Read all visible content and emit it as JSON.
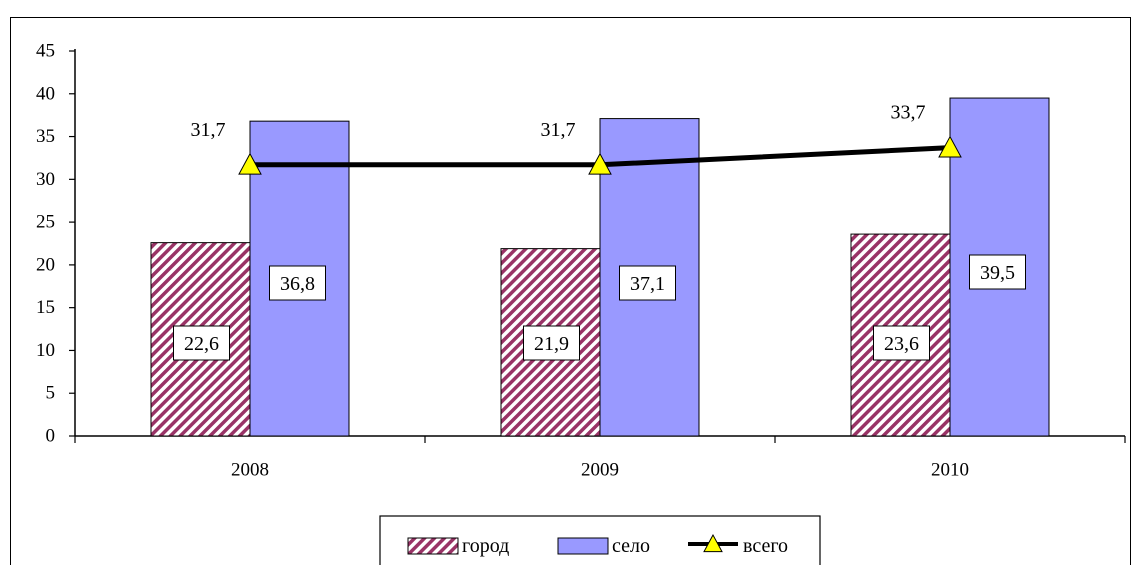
{
  "chart_data": {
    "type": "bar",
    "categories": [
      "2008",
      "2009",
      "2010"
    ],
    "series": [
      {
        "name": "город",
        "kind": "bar",
        "pattern": "diagonal-hatch",
        "color": "#993366",
        "values": [
          22.6,
          21.9,
          23.6
        ],
        "labels": [
          "22,6",
          "21,9",
          "23,6"
        ]
      },
      {
        "name": "село",
        "kind": "bar",
        "color": "#9999ff",
        "values": [
          36.8,
          37.1,
          39.5
        ],
        "labels": [
          "36,8",
          "37,1",
          "39,5"
        ]
      },
      {
        "name": "всего",
        "kind": "line",
        "marker": "triangle",
        "marker_color": "#ffff00",
        "line_color": "#000000",
        "values": [
          31.7,
          31.7,
          33.7
        ],
        "labels": [
          "31,7",
          "31,7",
          "33,7"
        ]
      }
    ],
    "y_ticks": [
      "0",
      "5",
      "10",
      "15",
      "20",
      "25",
      "30",
      "35",
      "40",
      "45"
    ],
    "ylim": [
      0,
      45
    ],
    "grid": false,
    "legend": "bottom-center"
  }
}
